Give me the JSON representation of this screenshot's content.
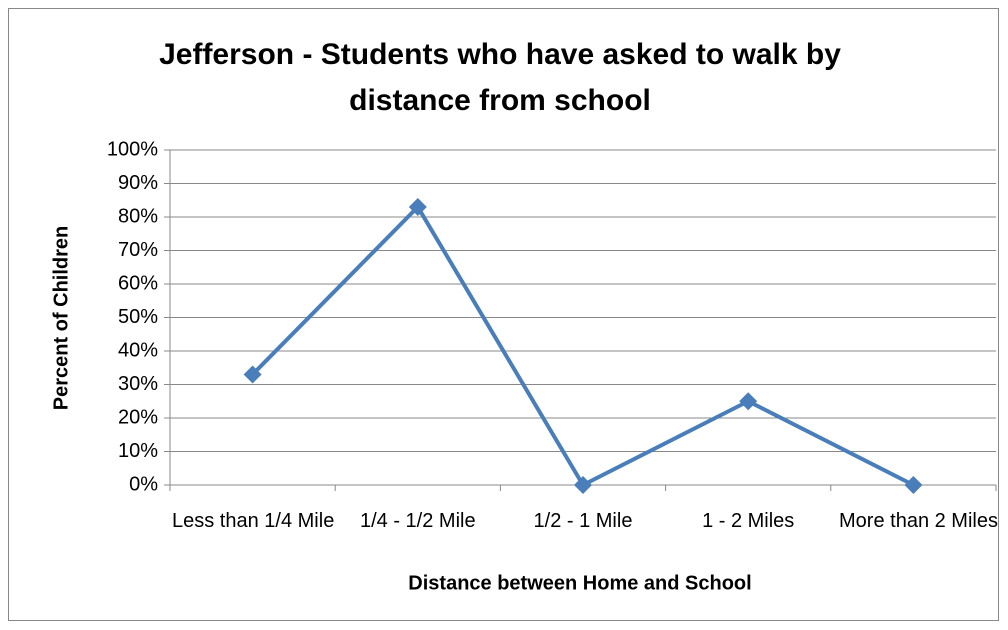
{
  "chart_data": {
    "type": "line",
    "title": "Jefferson - Students who have asked to walk by distance from school",
    "x_label": "Distance between Home and School",
    "y_label": "Percent of Children",
    "categories": [
      "Less than 1/4 Mile",
      "1/4 - 1/2 Mile",
      "1/2 - 1 Mile",
      "1 - 2 Miles",
      "More than 2 Miles"
    ],
    "series": [
      {
        "name": "Percent of Children",
        "color": "#4a7ebb",
        "values": [
          33,
          83,
          0,
          25,
          0
        ]
      }
    ],
    "ylim": [
      0,
      100
    ],
    "yticks": [
      {
        "value": 0,
        "label": "0%"
      },
      {
        "value": 10,
        "label": "10%"
      },
      {
        "value": 20,
        "label": "20%"
      },
      {
        "value": 30,
        "label": "30%"
      },
      {
        "value": 40,
        "label": "40%"
      },
      {
        "value": 50,
        "label": "50%"
      },
      {
        "value": 60,
        "label": "60%"
      },
      {
        "value": 70,
        "label": "70%"
      },
      {
        "value": 80,
        "label": "80%"
      },
      {
        "value": 90,
        "label": "90%"
      },
      {
        "value": 100,
        "label": "100%"
      }
    ],
    "grid": true
  }
}
